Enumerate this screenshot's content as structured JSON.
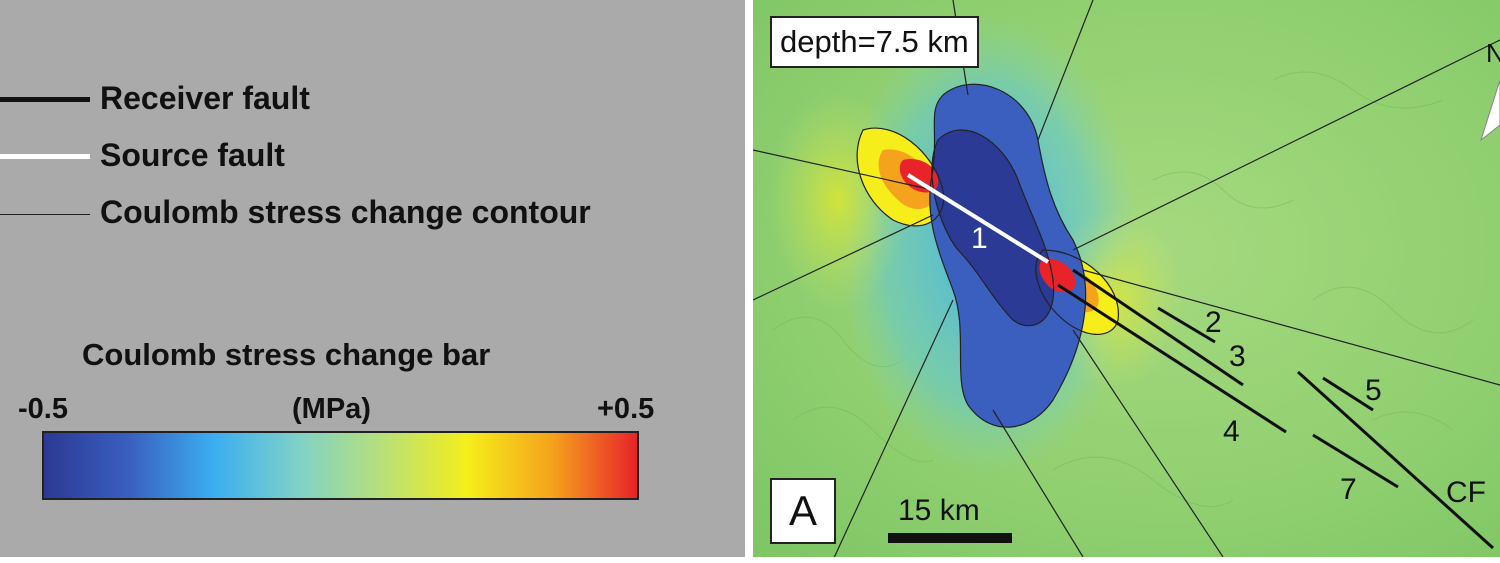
{
  "legend": {
    "receiver_label": "Receiver fault",
    "source_label": "Source fault",
    "contour_label": "Coulomb stress change contour",
    "bar_title": "Coulomb stress change bar",
    "bar_min": "-0.5",
    "bar_unit": "(MPa)",
    "bar_max": "+0.5",
    "bar_colors": [
      "#2b3a94",
      "#3a5fbf",
      "#3aaef0",
      "#7fd1c8",
      "#b8e078",
      "#f5ee1a",
      "#f5a21c",
      "#e8232a"
    ]
  },
  "map": {
    "depth_label": "depth=7.5 km",
    "panel_letter": "A",
    "scale_label": "15 km",
    "north_label": "N",
    "fault_labels": {
      "f1": "1",
      "f2": "2",
      "f3": "3",
      "f4": "4",
      "f5": "5",
      "f7": "7",
      "cf": "CF"
    },
    "colors": {
      "terrain": "#8fcf70",
      "negative": "#2b3a94",
      "positive": "#e8232a",
      "source_fault": "#ffffff",
      "receiver_fault": "#111111"
    }
  }
}
